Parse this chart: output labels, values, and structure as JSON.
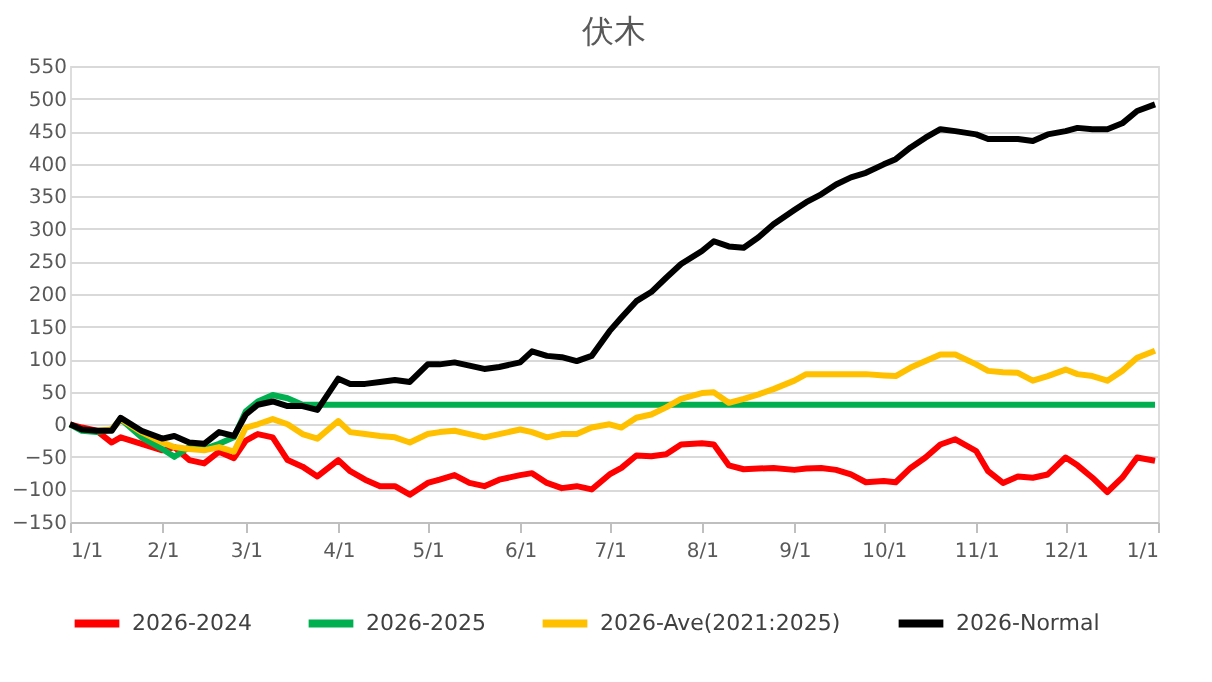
{
  "chart_data": {
    "type": "line",
    "title": "伏木",
    "x": [
      "2026-01-01",
      "2026-01-05",
      "2026-01-10",
      "2026-01-15",
      "2026-01-18",
      "2026-01-25",
      "2026-02-01",
      "2026-02-05",
      "2026-02-10",
      "2026-02-15",
      "2026-02-20",
      "2026-02-25",
      "2026-03-01",
      "2026-03-05",
      "2026-03-10",
      "2026-03-15",
      "2026-03-20",
      "2026-03-25",
      "2026-04-01",
      "2026-04-05",
      "2026-04-10",
      "2026-04-15",
      "2026-04-20",
      "2026-04-25",
      "2026-05-01",
      "2026-05-05",
      "2026-05-10",
      "2026-05-15",
      "2026-05-20",
      "2026-05-25",
      "2026-06-01",
      "2026-06-05",
      "2026-06-10",
      "2026-06-15",
      "2026-06-20",
      "2026-06-25",
      "2026-07-01",
      "2026-07-05",
      "2026-07-10",
      "2026-07-15",
      "2026-07-20",
      "2026-07-25",
      "2026-08-01",
      "2026-08-05",
      "2026-08-10",
      "2026-08-15",
      "2026-08-20",
      "2026-08-25",
      "2026-09-01",
      "2026-09-05",
      "2026-09-10",
      "2026-09-15",
      "2026-09-20",
      "2026-09-25",
      "2026-10-01",
      "2026-10-05",
      "2026-10-10",
      "2026-10-15",
      "2026-10-20",
      "2026-10-25",
      "2026-11-01",
      "2026-11-05",
      "2026-11-10",
      "2026-11-15",
      "2026-11-20",
      "2026-11-25",
      "2026-12-01",
      "2026-12-05",
      "2026-12-10",
      "2026-12-15",
      "2026-12-20",
      "2026-12-25",
      "2026-12-31"
    ],
    "series": [
      {
        "name": "2026-2024",
        "color": "#ff0000",
        "values": [
          0,
          -5,
          -10,
          -28,
          -20,
          -30,
          -40,
          -35,
          -55,
          -60,
          -42,
          -52,
          -25,
          -15,
          -20,
          -55,
          -65,
          -80,
          -55,
          -72,
          -85,
          -95,
          -95,
          -108,
          -90,
          -85,
          -78,
          -90,
          -95,
          -85,
          -78,
          -75,
          -90,
          -98,
          -95,
          -100,
          -77,
          -67,
          -48,
          -49,
          -46,
          -31,
          -29,
          -31,
          -63,
          -69,
          -68,
          -67,
          -70,
          -68,
          -67,
          -70,
          -77,
          -89,
          -87,
          -89,
          -67,
          -51,
          -31,
          -23,
          -41,
          -72,
          -90,
          -80,
          -82,
          -77,
          -51,
          -63,
          -82,
          -104,
          -82,
          -51,
          -56
        ]
      },
      {
        "name": "2026-2025",
        "color": "#00b050",
        "values": [
          0,
          -10,
          -12,
          -8,
          8,
          -20,
          -38,
          -50,
          -35,
          -38,
          -30,
          -20,
          20,
          35,
          45,
          40,
          30,
          30,
          30,
          30,
          30,
          30,
          30,
          30,
          30,
          30,
          30,
          30,
          30,
          30,
          30,
          30,
          30,
          30,
          30,
          30,
          30,
          30,
          30,
          30,
          30,
          30,
          30,
          30,
          30,
          30,
          30,
          30,
          30,
          30,
          30,
          30,
          30,
          30,
          30,
          30,
          30,
          30,
          30,
          30,
          30,
          30,
          30,
          30,
          30,
          30,
          30,
          30,
          30,
          30,
          30,
          30,
          30
        ]
      },
      {
        "name": "2026-Ave(2021:2025)",
        "color": "#ffc000",
        "values": [
          null,
          null,
          -10,
          -8,
          8,
          -12,
          -28,
          -35,
          -38,
          -40,
          -35,
          -42,
          -5,
          0,
          8,
          0,
          -15,
          -22,
          5,
          -12,
          -15,
          -18,
          -20,
          -28,
          -15,
          -12,
          -10,
          -15,
          -20,
          -15,
          -8,
          -12,
          -20,
          -15,
          -15,
          -5,
          0,
          -5,
          10,
          15,
          26,
          39,
          48,
          49,
          33,
          39,
          46,
          54,
          67,
          77,
          77,
          77,
          77,
          77,
          75,
          74,
          87,
          97,
          107,
          107,
          92,
          82,
          80,
          79,
          67,
          74,
          84,
          77,
          74,
          67,
          82,
          102,
          113
        ]
      },
      {
        "name": "2026-Normal",
        "color": "#000000",
        "values": [
          0,
          -8,
          -10,
          -10,
          10,
          -10,
          -22,
          -18,
          -28,
          -30,
          -12,
          -18,
          15,
          30,
          35,
          28,
          28,
          22,
          70,
          62,
          62,
          65,
          68,
          65,
          92,
          92,
          95,
          90,
          85,
          88,
          95,
          112,
          105,
          103,
          97,
          105,
          143,
          164,
          189,
          203,
          225,
          246,
          266,
          281,
          273,
          271,
          287,
          307,
          329,
          341,
          353,
          368,
          379,
          386,
          399,
          407,
          425,
          440,
          453,
          450,
          445,
          438,
          438,
          438,
          435,
          445,
          450,
          455,
          453,
          453,
          462,
          481,
          491
        ]
      }
    ],
    "xlim": [
      "2026-01-01",
      "2027-01-01"
    ],
    "xticks": [
      {
        "value": "2026-01-01",
        "label": "1/1"
      },
      {
        "value": "2026-02-01",
        "label": "2/1"
      },
      {
        "value": "2026-03-01",
        "label": "3/1"
      },
      {
        "value": "2026-04-01",
        "label": "4/1"
      },
      {
        "value": "2026-05-01",
        "label": "5/1"
      },
      {
        "value": "2026-06-01",
        "label": "6/1"
      },
      {
        "value": "2026-07-01",
        "label": "7/1"
      },
      {
        "value": "2026-08-01",
        "label": "8/1"
      },
      {
        "value": "2026-09-01",
        "label": "9/1"
      },
      {
        "value": "2026-10-01",
        "label": "10/1"
      },
      {
        "value": "2026-11-01",
        "label": "11/1"
      },
      {
        "value": "2026-12-01",
        "label": "12/1"
      },
      {
        "value": "2027-01-01",
        "label": "1/1"
      }
    ],
    "ylim": [
      -150,
      550
    ],
    "yticks": [
      -150,
      -100,
      -50,
      0,
      50,
      100,
      150,
      200,
      250,
      300,
      350,
      400,
      450,
      500,
      550
    ],
    "grid": "y",
    "legend": "bottom",
    "marker": "none",
    "line_style": "solid"
  }
}
